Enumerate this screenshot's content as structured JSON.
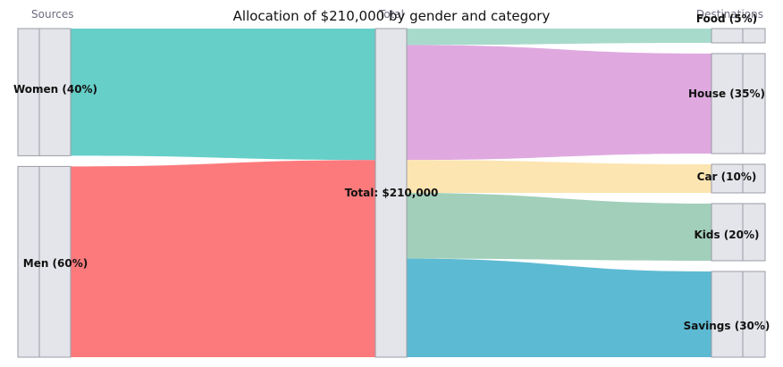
{
  "chart_data": {
    "type": "sankey",
    "title": "Allocation of $210,000 by gender and category",
    "column_headers": [
      "Sources",
      "Total",
      "Destinations"
    ],
    "colors": {
      "band": "#e4e5ea",
      "band_edge": "#9a9ca6",
      "women": "#66cfc8",
      "men": "#fc7a7c",
      "food": "#a7dacb",
      "house": "#dfa9e0",
      "car": "#fce5b1",
      "kids": "#a1cfba",
      "savings": "#5dbad3"
    },
    "sources": [
      {
        "id": "women",
        "label": "Women (40%)",
        "share": 40
      },
      {
        "id": "men",
        "label": "Men (60%)",
        "share": 60
      }
    ],
    "total": {
      "label": "Total: $210,000",
      "value": 210000
    },
    "destinations": [
      {
        "id": "food",
        "label": "Food (5%)",
        "share": 5
      },
      {
        "id": "house",
        "label": "House (35%)",
        "share": 35
      },
      {
        "id": "car",
        "label": "Car (10%)",
        "share": 10
      },
      {
        "id": "kids",
        "label": "Kids (20%)",
        "share": 20
      },
      {
        "id": "savings",
        "label": "Savings (30%)",
        "share": 30
      }
    ]
  }
}
